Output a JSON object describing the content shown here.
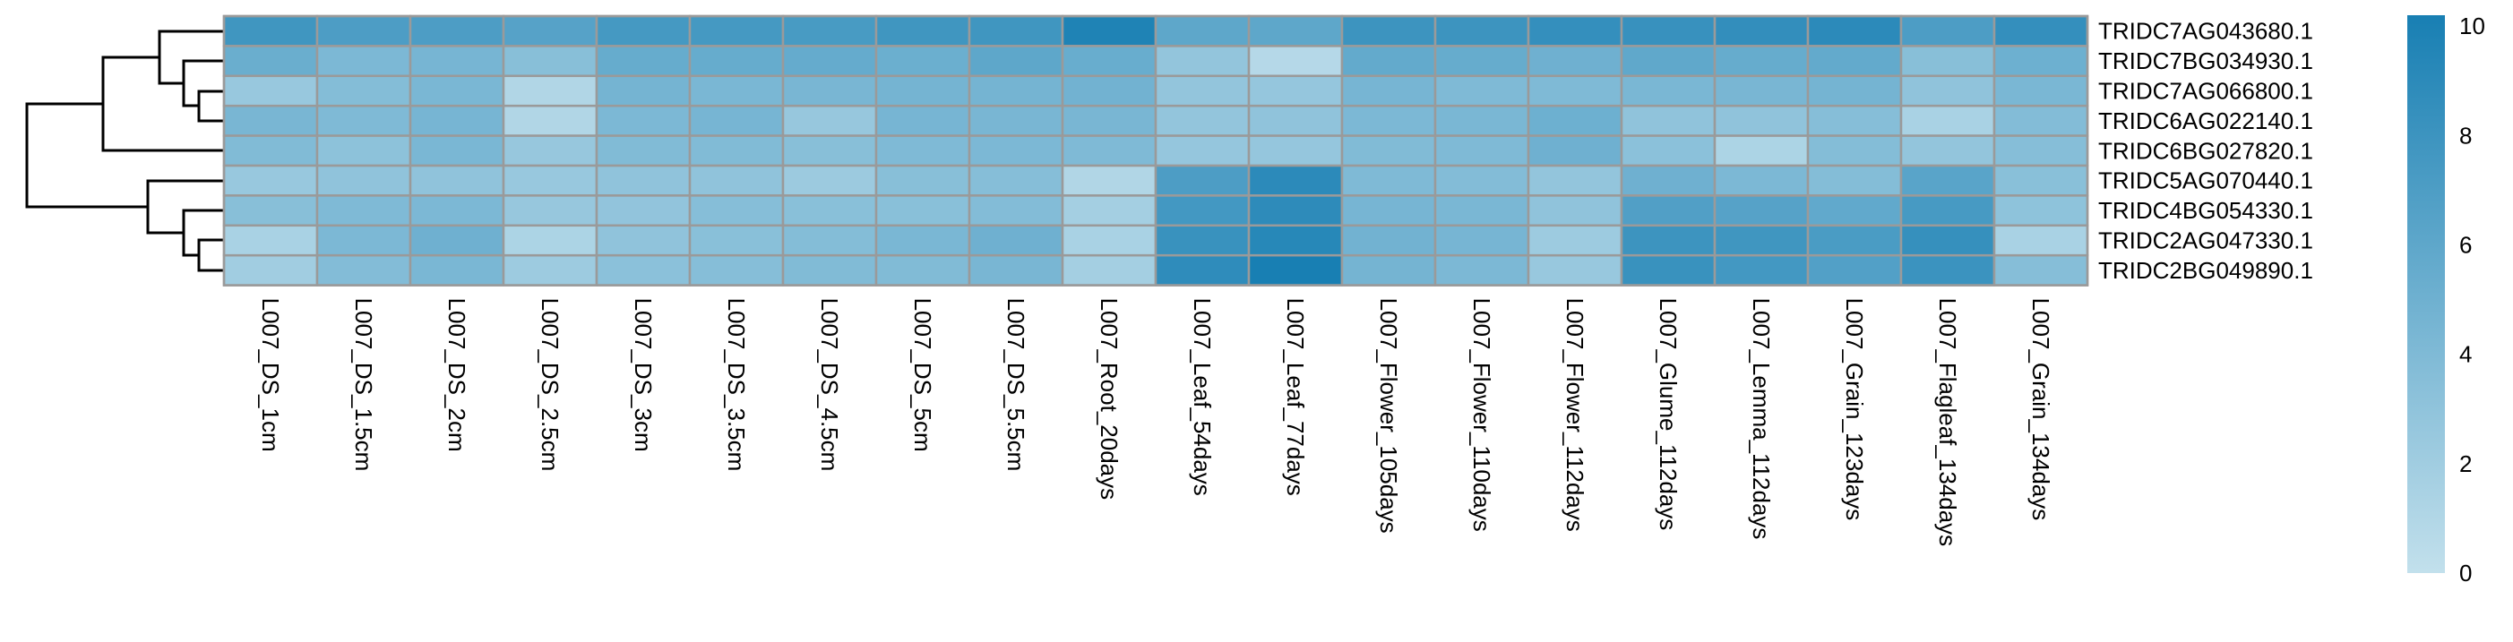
{
  "chart_data": {
    "type": "heatmap",
    "title": "",
    "xlabel": "",
    "ylabel": "",
    "rows": [
      "TRIDC7AG043680.1",
      "TRIDC7BG034930.1",
      "TRIDC7AG066800.1",
      "TRIDC6AG022140.1",
      "TRIDC6BG027820.1",
      "TRIDC5AG070440.1",
      "TRIDC4BG054330.1",
      "TRIDC2AG047330.1",
      "TRIDC2BG049890.1"
    ],
    "columns": [
      "L007_DS_1cm",
      "L007_DS_1.5cm",
      "L007_DS_2cm",
      "L007_DS_2.5cm",
      "L007_DS_3cm",
      "L007_DS_3.5cm",
      "L007_DS_4.5cm",
      "L007_DS_5cm",
      "L007_DS_5.5cm",
      "L007_Root_20days",
      "L007_Leaf_54days",
      "L007_Leaf_77days",
      "L007_Flower_105days",
      "L007_Flower_110days",
      "L007_Flower_112days",
      "L007_Glume_112days",
      "L007_Lemma_112days",
      "L007_Grain_123days",
      "L007_Flagleaf_134days",
      "L007_Grain_134days"
    ],
    "values": [
      [
        7.8,
        7.0,
        7.0,
        6.5,
        7.5,
        7.5,
        7.3,
        7.8,
        7.8,
        9.8,
        6.0,
        6.0,
        8.0,
        8.0,
        8.5,
        8.3,
        8.6,
        9.0,
        7.0,
        8.5
      ],
      [
        5.3,
        4.2,
        4.5,
        3.5,
        5.5,
        5.5,
        5.6,
        5.2,
        6.0,
        5.4,
        2.8,
        0.8,
        5.7,
        5.5,
        5.0,
        5.9,
        5.5,
        5.7,
        3.5,
        5.1
      ],
      [
        2.5,
        3.7,
        4.3,
        1.0,
        4.6,
        4.3,
        4.4,
        4.6,
        4.6,
        4.8,
        2.8,
        2.7,
        4.5,
        4.0,
        4.0,
        4.3,
        4.4,
        4.6,
        3.0,
        4.3
      ],
      [
        4.4,
        4.0,
        4.5,
        1.0,
        4.2,
        4.5,
        2.6,
        4.5,
        4.4,
        4.4,
        2.8,
        3.0,
        4.2,
        4.3,
        5.1,
        3.0,
        3.0,
        3.6,
        1.5,
        3.8
      ],
      [
        3.9,
        3.2,
        4.3,
        2.6,
        3.9,
        3.9,
        3.5,
        4.0,
        4.2,
        4.0,
        2.7,
        2.7,
        3.9,
        4.0,
        5.0,
        3.3,
        1.3,
        3.7,
        2.8,
        3.6
      ],
      [
        2.5,
        3.0,
        3.0,
        2.5,
        3.0,
        3.0,
        2.3,
        3.5,
        3.6,
        1.0,
        7.0,
        9.0,
        4.0,
        3.8,
        2.8,
        5.0,
        4.2,
        3.7,
        6.3,
        3.4
      ],
      [
        3.5,
        4.0,
        4.2,
        2.6,
        2.9,
        3.6,
        3.4,
        3.4,
        3.8,
        1.8,
        7.6,
        8.9,
        4.5,
        4.3,
        3.0,
        6.8,
        6.5,
        5.8,
        7.4,
        3.1
      ],
      [
        1.5,
        4.2,
        5.0,
        1.3,
        3.0,
        3.4,
        3.7,
        4.3,
        5.0,
        1.5,
        8.2,
        9.3,
        4.8,
        4.5,
        2.2,
        8.0,
        7.8,
        7.2,
        8.4,
        1.5
      ],
      [
        2.0,
        3.8,
        4.3,
        2.2,
        3.3,
        3.6,
        3.9,
        3.9,
        4.4,
        1.8,
        8.8,
        10.2,
        4.6,
        4.2,
        2.5,
        8.2,
        7.6,
        6.7,
        8.1,
        3.6
      ]
    ],
    "colorbar": {
      "range": [
        0,
        10.2
      ],
      "ticks": [
        "0",
        "2",
        "4",
        "6",
        "8",
        "10"
      ],
      "low_color": "#c2e0ec",
      "high_color": "#187fb3"
    },
    "row_dendrogram": true,
    "grid": true
  }
}
